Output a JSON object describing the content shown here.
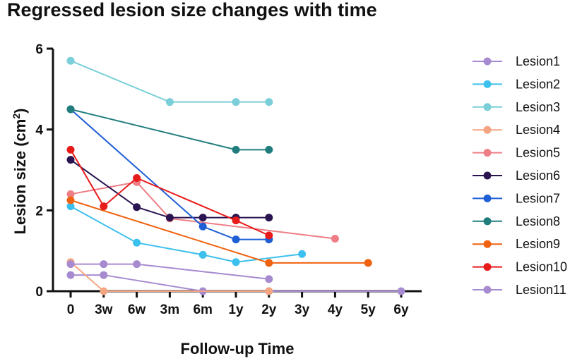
{
  "chart_data": {
    "type": "line",
    "title": "Regressed lesion size changes with time",
    "xlabel": "Follow-up Time",
    "ylabel_main": "Lesion size (cm",
    "ylabel_sup": "2",
    "ylabel_close": ")",
    "categories": [
      "0",
      "3w",
      "6w",
      "3m",
      "6m",
      "1y",
      "2y",
      "3y",
      "4y",
      "5y",
      "6y"
    ],
    "y_ticks": [
      "0",
      "2",
      "4",
      "6"
    ],
    "ylim": [
      0,
      6
    ],
    "series": [
      {
        "name": "Lesion1",
        "color": "#a78bd0",
        "points": [
          [
            0,
            0.4
          ],
          [
            1,
            0.4
          ],
          [
            4,
            0
          ],
          [
            6,
            0
          ],
          [
            10,
            0
          ]
        ]
      },
      {
        "name": "Lesion2",
        "color": "#3cc0ee",
        "points": [
          [
            0,
            2.1
          ],
          [
            2,
            1.2
          ],
          [
            4,
            0.9
          ],
          [
            5,
            0.72
          ],
          [
            7,
            0.92
          ]
        ]
      },
      {
        "name": "Lesion3",
        "color": "#7acfd8",
        "points": [
          [
            0,
            5.7
          ],
          [
            3,
            4.68
          ],
          [
            5,
            4.68
          ],
          [
            6,
            4.68
          ]
        ]
      },
      {
        "name": "Lesion4",
        "color": "#f4a582",
        "points": [
          [
            0,
            0.72
          ],
          [
            1,
            0
          ],
          [
            6,
            0
          ]
        ]
      },
      {
        "name": "Lesion5",
        "color": "#ee7e86",
        "points": [
          [
            0,
            2.4
          ],
          [
            2,
            2.7
          ],
          [
            3,
            1.8
          ],
          [
            8,
            1.3
          ]
        ]
      },
      {
        "name": "Lesion6",
        "color": "#2a1550",
        "points": [
          [
            0,
            3.25
          ],
          [
            2,
            2.08
          ],
          [
            3,
            1.82
          ],
          [
            4,
            1.82
          ],
          [
            5,
            1.82
          ],
          [
            6,
            1.82
          ]
        ]
      },
      {
        "name": "Lesion7",
        "color": "#1f5fd6",
        "points": [
          [
            0,
            4.5
          ],
          [
            4,
            1.6
          ],
          [
            5,
            1.28
          ],
          [
            6,
            1.28
          ]
        ]
      },
      {
        "name": "Lesion8",
        "color": "#217d7d",
        "points": [
          [
            0,
            4.5
          ],
          [
            5,
            3.5
          ],
          [
            6,
            3.5
          ]
        ]
      },
      {
        "name": "Lesion9",
        "color": "#f0620f",
        "points": [
          [
            0,
            2.25
          ],
          [
            6,
            0.7
          ],
          [
            9,
            0.7
          ]
        ]
      },
      {
        "name": "Lesion10",
        "color": "#e81b1b",
        "points": [
          [
            0,
            3.5
          ],
          [
            1,
            2.1
          ],
          [
            2,
            2.8
          ],
          [
            5,
            1.75
          ],
          [
            6,
            1.38
          ]
        ]
      },
      {
        "name": "Lesion11",
        "color": "#a78bd0",
        "points": [
          [
            0,
            0.67
          ],
          [
            1,
            0.67
          ],
          [
            2,
            0.67
          ],
          [
            6,
            0.3
          ]
        ]
      }
    ]
  }
}
